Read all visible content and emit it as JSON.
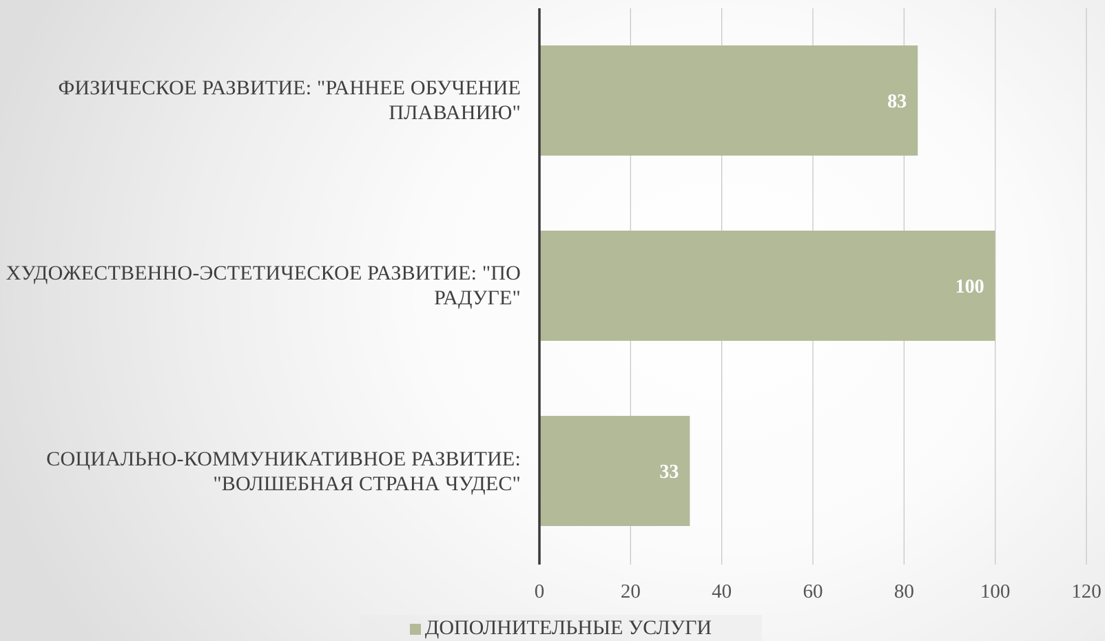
{
  "chart_data": {
    "type": "bar",
    "orientation": "horizontal",
    "categories": [
      "Физическое развитие: \"Раннее обучение плаванию\"",
      "Художественно-эстетическое развитие: \"По радуге\"",
      "Социально-коммуникативное развитие: \"Волшебная страна чудес\""
    ],
    "series": [
      {
        "name": "Дополнительные услуги",
        "values": [
          83,
          100,
          33
        ],
        "color": "#b2ba98"
      }
    ],
    "data_labels": [
      "83",
      "100",
      "33"
    ],
    "title": "",
    "xlabel": "",
    "ylabel": "",
    "xlim": [
      0,
      120
    ],
    "x_ticks": [
      0,
      20,
      40,
      60,
      80,
      100,
      120
    ],
    "grid": true,
    "legend": "bottom"
  }
}
